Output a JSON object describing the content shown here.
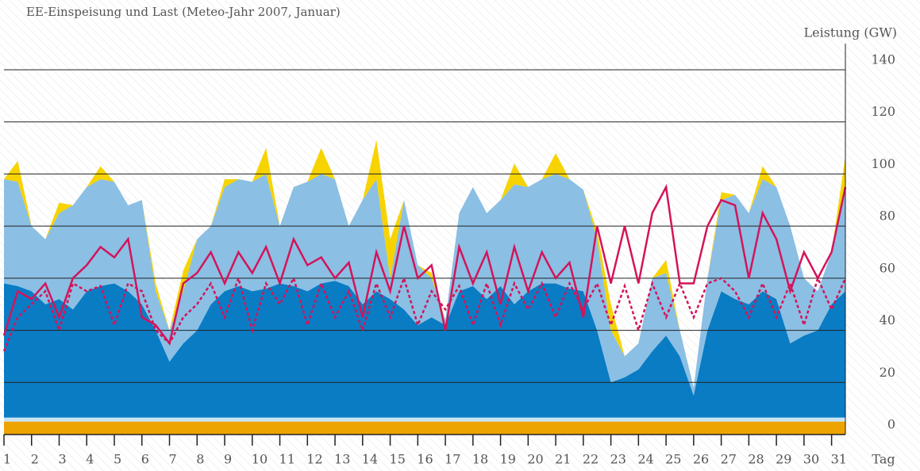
{
  "chart_data": {
    "type": "stacked-area-line",
    "title": "EE-Einspeisung und Last (Meteo-Jahr 2007, Januar)",
    "y_label": "Leistung (GW)",
    "x_label": "Tag",
    "x": [
      1,
      1.5,
      2,
      2.5,
      3,
      3.5,
      4,
      4.5,
      5,
      5.5,
      6,
      6.5,
      7,
      7.5,
      8,
      8.5,
      9,
      9.5,
      10,
      10.5,
      11,
      11.5,
      12,
      12.5,
      13,
      13.5,
      14,
      14.5,
      15,
      15.5,
      16,
      16.5,
      17,
      17.5,
      18,
      18.5,
      19,
      19.5,
      20,
      20.5,
      21,
      21.5,
      22,
      22.5,
      23,
      23.5,
      24,
      24.5,
      25,
      25.5,
      26,
      26.5,
      27,
      27.5,
      28,
      28.5,
      29,
      29.5,
      30,
      30.5,
      31,
      31.5
    ],
    "xlim": [
      1,
      31.5
    ],
    "xticks": [
      1,
      2,
      3,
      4,
      5,
      6,
      7,
      8,
      9,
      10,
      11,
      12,
      13,
      14,
      15,
      16,
      17,
      18,
      19,
      20,
      21,
      22,
      23,
      24,
      25,
      26,
      27,
      28,
      29,
      30,
      31
    ],
    "ylim": [
      0,
      140
    ],
    "yticks": [
      0,
      20,
      40,
      60,
      80,
      100,
      120,
      140
    ],
    "grid": true,
    "areas": [
      {
        "color": "#eea400",
        "values": [
          5,
          5,
          5,
          5,
          5,
          5,
          5,
          5,
          5,
          5,
          5,
          5,
          5,
          5,
          5,
          5,
          5,
          5,
          5,
          5,
          5,
          5,
          5,
          5,
          5,
          5,
          5,
          5,
          5,
          5,
          5,
          5,
          5,
          5,
          5,
          5,
          5,
          5,
          5,
          5,
          5,
          5,
          5,
          5,
          5,
          5,
          5,
          5,
          5,
          5,
          5,
          5,
          5,
          5,
          5,
          5,
          5,
          5,
          5,
          5,
          5,
          5
        ]
      },
      {
        "color": "#c9e5f5",
        "values": [
          1.5,
          1.5,
          1.5,
          1.5,
          1.5,
          1.5,
          1.5,
          1.5,
          1.5,
          1.5,
          1.5,
          1.5,
          1.5,
          1.5,
          1.5,
          1.5,
          1.5,
          1.5,
          1.5,
          1.5,
          1.5,
          1.5,
          1.5,
          1.5,
          1.5,
          1.5,
          1.5,
          1.5,
          1.5,
          1.5,
          1.5,
          1.5,
          1.5,
          1.5,
          1.5,
          1.5,
          1.5,
          1.5,
          1.5,
          1.5,
          1.5,
          1.5,
          1.5,
          1.5,
          1.5,
          1.5,
          1.5,
          1.5,
          1.5,
          1.5,
          1.5,
          1.5,
          1.5,
          1.5,
          1.5,
          1.5,
          1.5,
          1.5,
          1.5,
          1.5,
          1.5,
          1.5
        ]
      },
      {
        "color": "#0a7cc4",
        "values": [
          51.5,
          50.5,
          48.5,
          43.5,
          45.5,
          41.5,
          48.5,
          50.5,
          51.5,
          48.5,
          43.5,
          33.5,
          21.5,
          28.5,
          33.5,
          43.5,
          48.5,
          50.5,
          48.5,
          49.5,
          51.5,
          50.5,
          48.5,
          51.5,
          52.5,
          50.5,
          43.5,
          48.5,
          45.5,
          41.5,
          35.5,
          38.5,
          35.5,
          48.5,
          50.5,
          45.5,
          50.5,
          43.5,
          48.5,
          51.5,
          51.5,
          49.5,
          48.5,
          33.5,
          13.5,
          15.5,
          18.5,
          25.5,
          31.5,
          23.5,
          8.5,
          33.5,
          48.5,
          45.5,
          43.5,
          48.5,
          45.5,
          28.5,
          31.5,
          33.5,
          43.5,
          48.5
        ]
      },
      {
        "color": "#8bbfe4",
        "values": [
          40,
          40,
          25,
          25,
          33,
          40,
          40,
          41,
          39,
          33,
          40,
          15,
          12,
          20,
          35,
          30,
          40,
          41,
          42,
          44,
          22,
          38,
          42,
          42,
          39,
          23,
          40,
          43,
          8,
          42,
          23,
          15,
          2,
          30,
          38,
          33,
          33,
          46,
          40,
          40,
          42,
          42,
          39,
          35,
          20,
          8,
          10,
          28,
          24,
          10,
          3,
          20,
          35,
          40,
          35,
          43,
          43,
          45,
          22,
          15,
          20,
          40
        ]
      },
      {
        "color": "#f7d300",
        "values": [
          0,
          8,
          0,
          0,
          4,
          0,
          0,
          5,
          0,
          0,
          0,
          3,
          0,
          8,
          0,
          0,
          3,
          0,
          0,
          10,
          0,
          0,
          0,
          10,
          0,
          0,
          0,
          15,
          15,
          0,
          0,
          2,
          0,
          0,
          0,
          0,
          0,
          8,
          0,
          0,
          8,
          0,
          0,
          3,
          10,
          0,
          0,
          0,
          5,
          0,
          0,
          0,
          3,
          0,
          0,
          5,
          0,
          0,
          0,
          0,
          0,
          12
        ]
      }
    ],
    "lines": [
      {
        "color": "#d4145a",
        "dash": false,
        "values": [
          38,
          55,
          52,
          58,
          45,
          60,
          65,
          72,
          68,
          75,
          45,
          42,
          35,
          58,
          62,
          70,
          58,
          70,
          62,
          72,
          58,
          75,
          65,
          68,
          60,
          66,
          45,
          70,
          55,
          80,
          60,
          65,
          40,
          72,
          58,
          70,
          50,
          72,
          55,
          70,
          60,
          66,
          45,
          80,
          58,
          80,
          58,
          85,
          95,
          58,
          58,
          80,
          90,
          88,
          60,
          85,
          75,
          55,
          70,
          60,
          70,
          95
        ]
      },
      {
        "color": "#d4145a",
        "dash": true,
        "values": [
          32,
          45,
          50,
          55,
          40,
          58,
          55,
          57,
          42,
          58,
          55,
          40,
          35,
          45,
          50,
          58,
          45,
          60,
          40,
          58,
          50,
          60,
          42,
          58,
          45,
          55,
          40,
          58,
          45,
          60,
          42,
          55,
          48,
          57,
          42,
          58,
          42,
          58,
          48,
          58,
          45,
          58,
          48,
          58,
          42,
          57,
          40,
          58,
          45,
          58,
          45,
          58,
          60,
          55,
          45,
          58,
          45,
          58,
          42,
          60,
          48,
          60
        ]
      }
    ]
  }
}
